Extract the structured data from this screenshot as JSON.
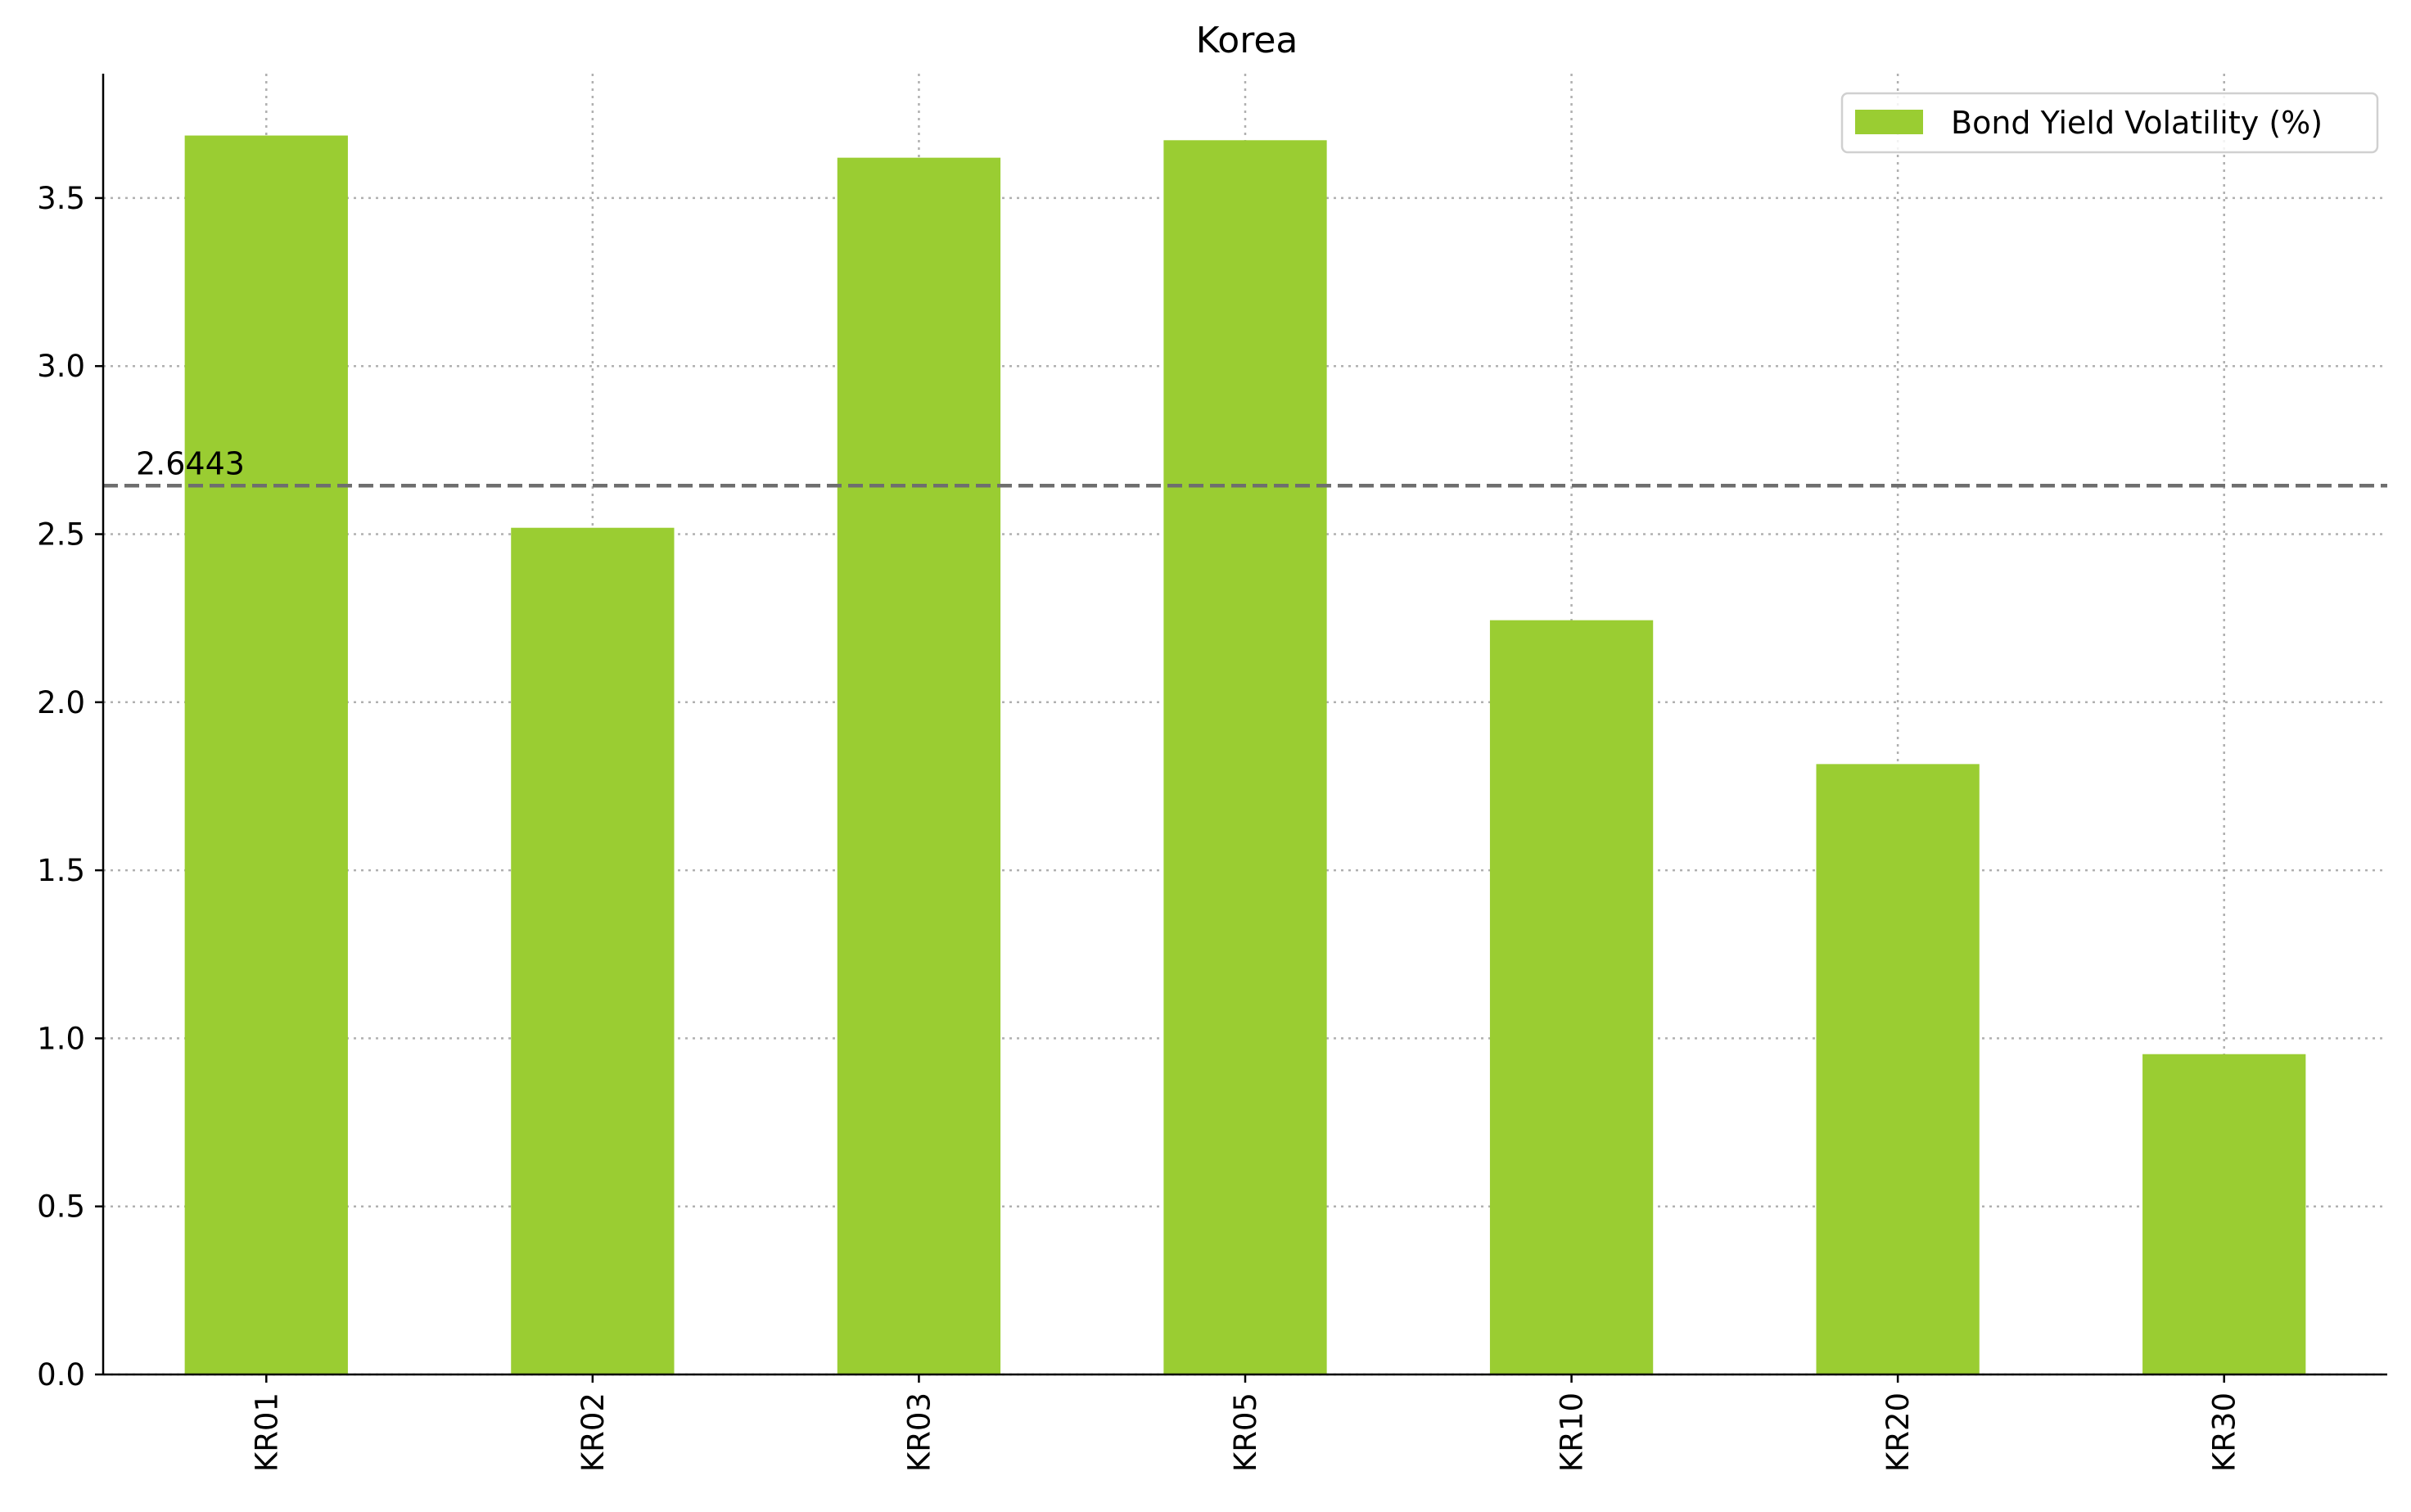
{
  "chart_data": {
    "type": "bar",
    "title": "Korea",
    "xlabel": "",
    "ylabel": "",
    "categories": [
      "KR01",
      "KR02",
      "KR03",
      "KR05",
      "KR10",
      "KR20",
      "KR30"
    ],
    "series": [
      {
        "name": "Bond Yield Volatility (%)",
        "values": [
          3.686,
          2.519,
          3.62,
          3.672,
          2.244,
          1.816,
          0.953
        ],
        "color": "#9acd32"
      }
    ],
    "reference_line": {
      "value": 2.6443,
      "label": "2.6443",
      "style": "dashed",
      "color": "#6e6e6e"
    },
    "ylim": [
      0,
      3.87
    ],
    "yticks": [
      0.0,
      0.5,
      1.0,
      1.5,
      2.0,
      2.5,
      3.0,
      3.5
    ],
    "ytick_labels": [
      "0.0",
      "0.5",
      "1.0",
      "1.5",
      "2.0",
      "2.5",
      "3.0",
      "3.5"
    ],
    "grid": true,
    "legend_position": "top-right",
    "x_tick_rotation": "vertical"
  }
}
